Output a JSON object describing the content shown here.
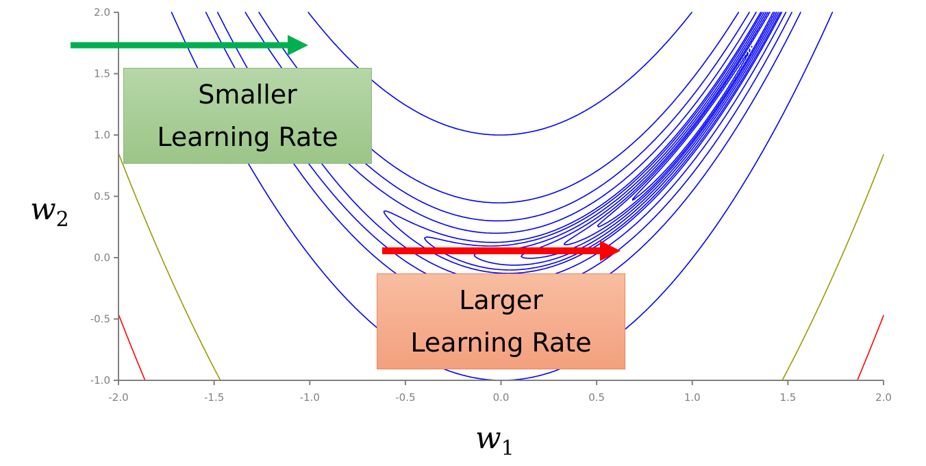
{
  "chart_data": {
    "type": "contour",
    "function": "rosenbrock: (1-w1)^2 + 100*(w2-w1^2)^2",
    "xlim": [
      -2.0,
      2.0
    ],
    "ylim": [
      -1.0,
      2.0
    ],
    "xticks": [
      "-2.0",
      "-1.5",
      "-1.0",
      "-0.5",
      "0.0",
      "0.5",
      "1.0",
      "1.5",
      "2.0"
    ],
    "yticks": [
      "-1.0",
      "-0.5",
      "0.0",
      "0.5",
      "1.0",
      "1.5",
      "2.0"
    ],
    "xlabel": "w",
    "xlabel_sub": "1",
    "ylabel": "w",
    "ylabel_sub": "2",
    "contour_levels": [
      {
        "level": 101,
        "color": "#0000ff"
      },
      {
        "level": 21,
        "color": "#0000ff"
      },
      {
        "level": 10,
        "color": "#0000ff"
      },
      {
        "level": 5,
        "color": "#0000ff"
      },
      {
        "level": 2.6,
        "color": "#0000ff"
      },
      {
        "level": 1.96,
        "color": "#0000ff"
      },
      {
        "level": 1.3,
        "color": "#0000ff"
      },
      {
        "level": 0.8,
        "color": "#0000ff"
      },
      {
        "level": 0.45,
        "color": "#0000ff"
      },
      {
        "level": 0.25,
        "color": "#0000ff"
      },
      {
        "level": 0.1,
        "color": "#0000ff"
      },
      {
        "level": 1000,
        "color": "#999900"
      },
      {
        "level": 2000,
        "color": "#ff0000"
      }
    ],
    "annotations": [
      {
        "text_line1": "Smaller",
        "text_line2": "Learning Rate",
        "arrow_color": "#00b050"
      },
      {
        "text_line1": "Larger",
        "text_line2": "Learning Rate",
        "arrow_color": "#ff0000"
      }
    ]
  }
}
